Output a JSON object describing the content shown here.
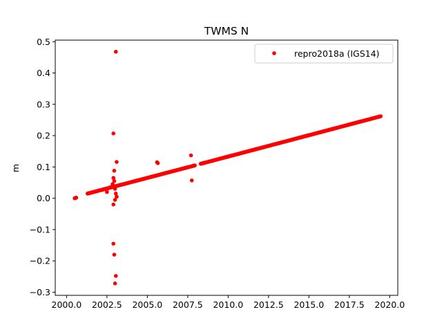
{
  "chart_data": {
    "type": "scatter",
    "title": "TWMS N",
    "xlabel": "",
    "ylabel": "m",
    "xlim": [
      1999.3,
      2020.5
    ],
    "ylim": [
      -0.31,
      0.505
    ],
    "xticks": [
      2000.0,
      2002.5,
      2005.0,
      2007.5,
      2010.0,
      2012.5,
      2015.0,
      2017.5,
      2020.0
    ],
    "xtick_labels": [
      "2000.0",
      "2002.5",
      "2005.0",
      "2007.5",
      "2010.0",
      "2012.5",
      "2015.0",
      "2017.5",
      "2020.0"
    ],
    "yticks": [
      -0.3,
      -0.2,
      -0.1,
      0.0,
      0.1,
      0.2,
      0.3,
      0.4,
      0.5
    ],
    "ytick_labels": [
      "−0.3",
      "−0.2",
      "−0.1",
      "0.0",
      "0.1",
      "0.2",
      "0.3",
      "0.4",
      "0.5"
    ],
    "grid": false,
    "legend": {
      "position": "upper right",
      "entries": [
        "repro2018a (IGS14)"
      ]
    },
    "series": [
      {
        "name": "repro2018a (IGS14)",
        "color": "#ff0000",
        "marker": "circle",
        "trend": {
          "segments": [
            {
              "x_start": 2000.5,
              "x_end": 2000.6,
              "y_start": 0.0,
              "y_end": 0.002,
              "step": 0.02
            },
            {
              "x_start": 2001.3,
              "x_end": 2007.95,
              "y_start": 0.015,
              "y_end": 0.105,
              "step": 0.02
            },
            {
              "x_start": 2008.3,
              "x_end": 2019.45,
              "y_start": 0.11,
              "y_end": 0.262,
              "step": 0.02
            }
          ]
        },
        "outliers": [
          [
            2003.05,
            0.468
          ],
          [
            2002.9,
            0.207
          ],
          [
            2003.1,
            0.116
          ],
          [
            2002.95,
            0.088
          ],
          [
            2002.9,
            0.065
          ],
          [
            2002.95,
            0.055
          ],
          [
            2002.85,
            0.045
          ],
          [
            2003.0,
            0.03
          ],
          [
            2003.05,
            0.015
          ],
          [
            2003.1,
            0.005
          ],
          [
            2003.0,
            -0.005
          ],
          [
            2002.9,
            -0.02
          ],
          [
            2002.9,
            -0.145
          ],
          [
            2002.95,
            -0.18
          ],
          [
            2003.05,
            -0.248
          ],
          [
            2003.0,
            -0.272
          ],
          [
            2005.6,
            0.115
          ],
          [
            2005.65,
            0.112
          ],
          [
            2007.7,
            0.137
          ],
          [
            2007.75,
            0.057
          ],
          [
            2002.5,
            0.02
          ],
          [
            2002.7,
            0.035
          ]
        ]
      }
    ]
  }
}
